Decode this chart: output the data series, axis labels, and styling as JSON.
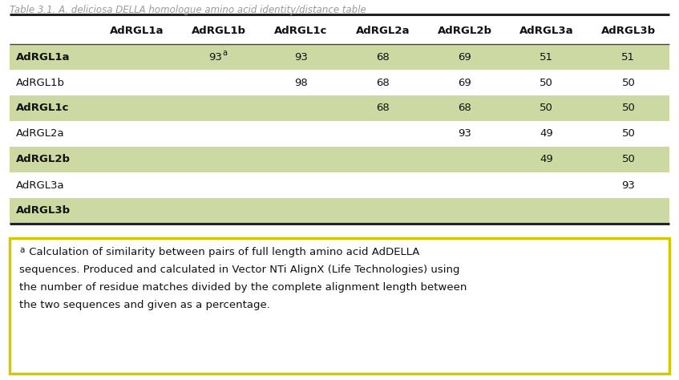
{
  "title": "Table 3.1. A. deliciosa DELLA homologue amino acid identity/distance table",
  "col_headers": [
    "AdRGL1a",
    "AdRGL1b",
    "AdRGL1c",
    "AdRGL2a",
    "AdRGL2b",
    "AdRGL3a",
    "AdRGL3b"
  ],
  "row_headers": [
    "AdRGL1a",
    "AdRGL1b",
    "AdRGL1c",
    "AdRGL2a",
    "AdRGL2b",
    "AdRGL3a",
    "AdRGL3b"
  ],
  "table_data": [
    [
      "",
      "93a",
      "93",
      "68",
      "69",
      "51",
      "51"
    ],
    [
      "",
      "",
      "98",
      "68",
      "69",
      "50",
      "50"
    ],
    [
      "",
      "",
      "",
      "68",
      "68",
      "50",
      "50"
    ],
    [
      "",
      "",
      "",
      "",
      "93",
      "49",
      "50"
    ],
    [
      "",
      "",
      "",
      "",
      "",
      "49",
      "50"
    ],
    [
      "",
      "",
      "",
      "",
      "",
      "",
      "93"
    ],
    [
      "",
      "",
      "",
      "",
      "",
      "",
      ""
    ]
  ],
  "shaded_rows": [
    0,
    2,
    4,
    6
  ],
  "row_bg_shaded": "#cdd9a3",
  "row_bg_normal": "#ffffff",
  "bold_rows": [
    0,
    2,
    4,
    6
  ],
  "footnote_border_color": "#d4c800",
  "footnote_text_lines": [
    " Calculation of similarity between pairs of full length amino acid AdDELLA",
    "sequences. Produced and calculated in Vector NTi AlignX (Life Technologies) using",
    "the number of residue matches divided by the complete alignment length between",
    "the two sequences and given as a percentage."
  ],
  "background_color": "#ffffff",
  "font_color": "#111111"
}
